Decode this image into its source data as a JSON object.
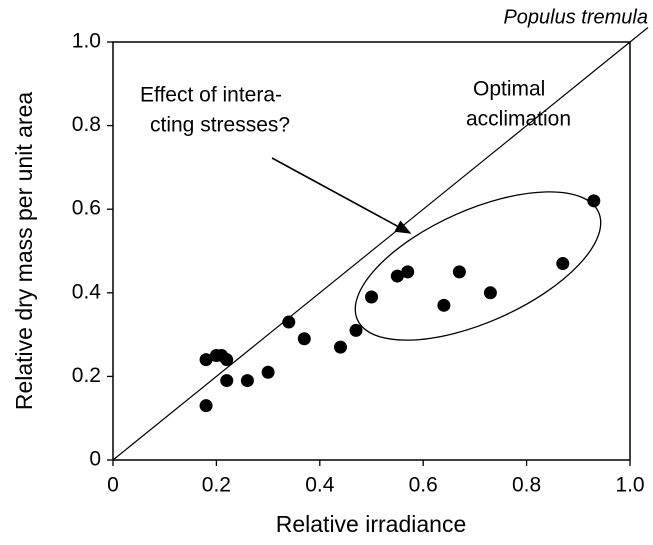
{
  "chart_data": {
    "type": "scatter",
    "title": "Populus tremula",
    "x_label": "Relative irradiance",
    "y_label": "Relative dry mass per unit area",
    "annotations": [
      "Effect of intera-",
      "cting stresses?",
      "Optimal",
      "acclimation"
    ],
    "x": [
      0.18,
      0.2,
      0.21,
      0.22,
      0.18,
      0.22,
      0.26,
      0.3,
      0.34,
      0.37,
      0.44,
      0.47,
      0.5,
      0.55,
      0.57,
      0.64,
      0.67,
      0.73,
      0.87,
      0.93
    ],
    "values": [
      0.24,
      0.25,
      0.25,
      0.24,
      0.13,
      0.19,
      0.19,
      0.21,
      0.33,
      0.29,
      0.27,
      0.31,
      0.39,
      0.44,
      0.45,
      0.37,
      0.45,
      0.4,
      0.47,
      0.62
    ],
    "color": "#000000",
    "xlim": [
      0,
      1
    ],
    "ylim": [
      0,
      1
    ],
    "xticks": [
      0,
      0.2,
      0.4,
      0.6,
      0.8,
      {
        "value": 1,
        "label": "1.0"
      }
    ],
    "yticks": [
      0,
      0.2,
      0.4,
      0.6,
      0.8,
      {
        "value": 1,
        "label": "1.0"
      }
    ],
    "grid": false
  }
}
